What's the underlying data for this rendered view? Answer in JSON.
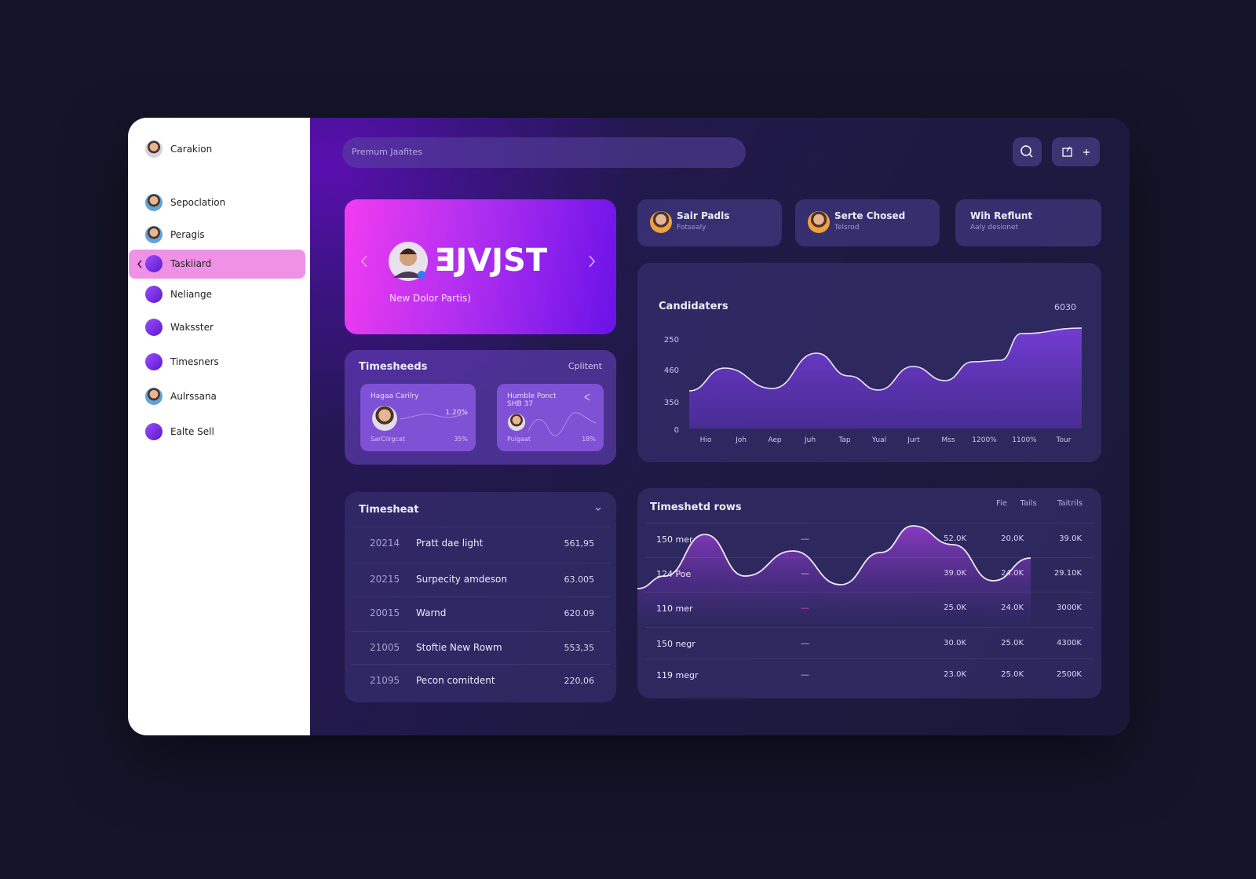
{
  "sidebar": {
    "brand": "Carakion",
    "items": [
      "Sepoclation",
      "Peragis",
      "Taskiiard",
      "Neliange",
      "Waksster",
      "Timesners",
      "Aulrssana",
      "Ealte Sell"
    ],
    "active": 2
  },
  "search": {
    "placeholder": "Premum Jaafites"
  },
  "hero": {
    "title": "ƎJVJST",
    "subtitle": "New Dolor Partis)"
  },
  "timesheeds": {
    "title": "Timesheeds",
    "action": "Cplitent",
    "cards": [
      {
        "title": "Hagaa Carilry",
        "value": "1.20%",
        "footer": "SarCilrgcat",
        "percent": "35%"
      },
      {
        "title": "Humble Ponct SHB 37",
        "value": "",
        "footer": "Pulgaat",
        "percent": "18%"
      }
    ]
  },
  "profiles": [
    {
      "name": "Sair Padls",
      "sub": "Fotsealy"
    },
    {
      "name": "Serte Chosed",
      "sub": "Telsrod"
    },
    {
      "name": "Wih Reflunt",
      "sub": "Aaly desionet"
    }
  ],
  "candidates": {
    "title": "Candidaters",
    "corner": "6030",
    "ylabels": [
      "250",
      "460",
      "350",
      "0"
    ],
    "xlabels": [
      "Hio",
      "Joh",
      "Aep",
      "Juh",
      "Tap",
      "Yual",
      "Jurt",
      "Mss",
      "1200%",
      "1100%",
      "Tour"
    ]
  },
  "timesheet": {
    "title": "Timesheat",
    "rows": [
      [
        "20214",
        "Pratt dae light",
        "561,95"
      ],
      [
        "20215",
        "Surpecity amdeson",
        "63.005"
      ],
      [
        "20015",
        "Warnd",
        "620.09"
      ],
      [
        "21005",
        "Stoftie New Rowm",
        "553,35"
      ],
      [
        "21095",
        "Pecon comitdent",
        "220,06"
      ]
    ]
  },
  "rows_table": {
    "title": "Timeshetd rows",
    "headers": [
      "Fie",
      "Tails",
      "Taitrils"
    ],
    "rows": [
      [
        "150 mer",
        "—",
        "52.0K",
        "20,0K",
        "39.0K"
      ],
      [
        "124 Poe",
        "—",
        "39.0K",
        "24.0K",
        "29.10K"
      ],
      [
        "110 mer",
        "—",
        "25.0K",
        "24.0K",
        "3000K"
      ],
      [
        "150 negr",
        "—",
        "30.0K",
        "25.0K",
        "4300K"
      ],
      [
        "119 megr",
        "—",
        "23.0K",
        "25.0K",
        "2500K"
      ]
    ]
  }
}
